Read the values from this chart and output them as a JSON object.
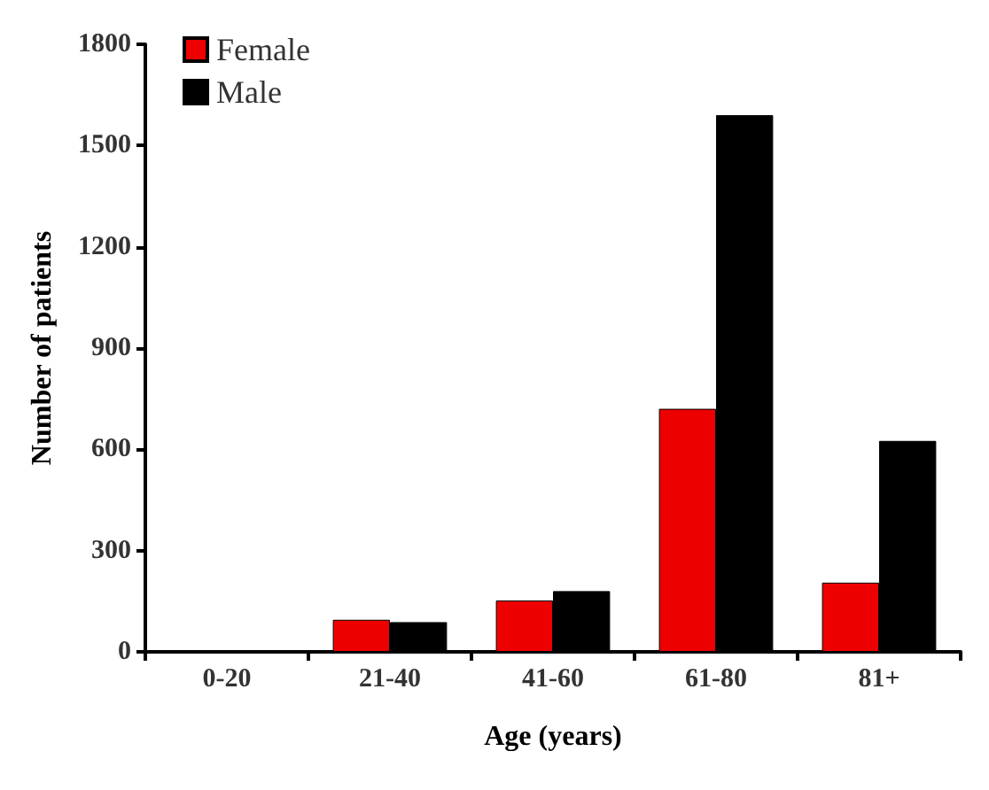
{
  "chart_data": {
    "type": "bar",
    "xlabel": "Age (years)",
    "ylabel": "Number of patients",
    "categories": [
      "0-20",
      "21-40",
      "41-60",
      "61-80",
      "81+"
    ],
    "series": [
      {
        "name": "Female",
        "color": "#ee0000",
        "values": [
          null,
          95,
          152,
          720,
          205
        ]
      },
      {
        "name": "Male",
        "color": "#000000",
        "values": [
          null,
          88,
          180,
          1590,
          625
        ]
      }
    ],
    "ylim": [
      0,
      1800
    ],
    "yticks": [
      0,
      300,
      600,
      900,
      1200,
      1500,
      1800
    ],
    "grid": false,
    "legend": "top left"
  }
}
